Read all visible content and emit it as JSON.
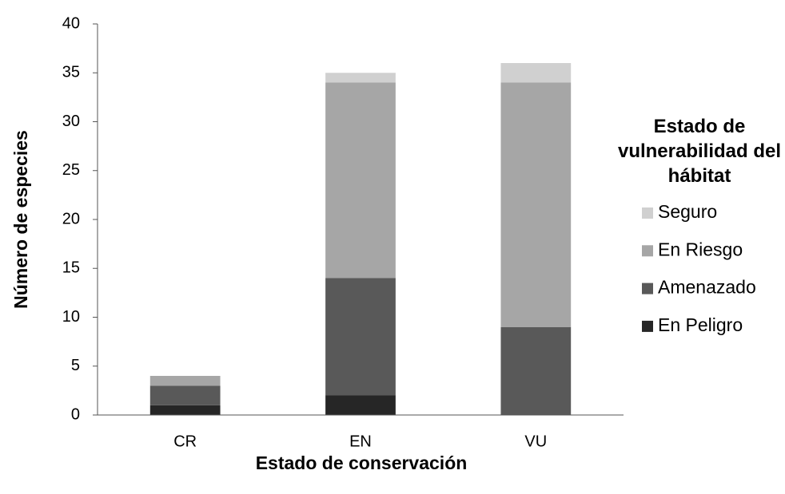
{
  "chart_data": {
    "type": "bar",
    "stacked": true,
    "x_label": "Estado de conservación",
    "y_label": "Número de especies",
    "legend_title": "Estado de vulnerabilidad del hábitat",
    "categories": [
      "CR",
      "EN",
      "VU"
    ],
    "series": [
      {
        "name": "En Peligro",
        "color": "#262626",
        "values": [
          1,
          2,
          0
        ]
      },
      {
        "name": "Amenazado",
        "color": "#595959",
        "values": [
          2,
          12,
          9
        ]
      },
      {
        "name": "En Riesgo",
        "color": "#a6a6a6",
        "values": [
          1,
          20,
          25
        ]
      },
      {
        "name": "Seguro",
        "color": "#d0d0d0",
        "values": [
          0,
          1,
          2
        ]
      }
    ],
    "ylim": [
      0,
      40
    ],
    "yticks": [
      0,
      5,
      10,
      15,
      20,
      25,
      30,
      35,
      40
    ],
    "grid": false,
    "legend": "right"
  }
}
